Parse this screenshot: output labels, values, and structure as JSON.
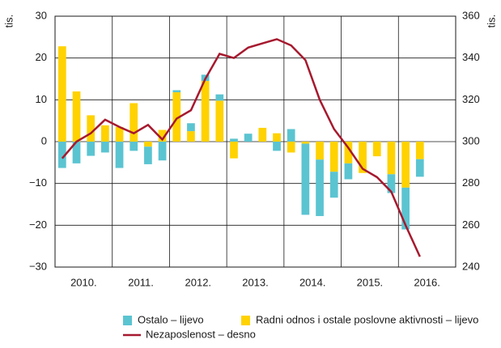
{
  "chart_data": {
    "type": "bar",
    "y_unit": "tis.",
    "y2_unit": "tis.",
    "xlim": [
      0,
      28
    ],
    "year_labels": [
      "2010.",
      "2011.",
      "2012.",
      "2013.",
      "2014.",
      "2015.",
      "2016."
    ],
    "categories": [
      null,
      null,
      null,
      null,
      null,
      null,
      null,
      null,
      null,
      null,
      null,
      null,
      null,
      null,
      null,
      null,
      null,
      null,
      null,
      null,
      null,
      null,
      null,
      null,
      null,
      null
    ],
    "ylim": [
      -30,
      30
    ],
    "yticks": [
      {
        "value": -30,
        "label": "−30"
      },
      {
        "value": -20,
        "label": "−20"
      },
      {
        "value": -10,
        "label": "−10"
      },
      0,
      10,
      20,
      30
    ],
    "y2lim": [
      240,
      360
    ],
    "y2ticks": [
      240,
      260,
      280,
      300,
      320,
      340,
      360
    ],
    "grid": true,
    "legend": "bottom",
    "series": [
      {
        "name": "Ostalo – lijevo",
        "color": "#5bc4d1",
        "values": [
          -6.3,
          -5.2,
          -3.4,
          -2.6,
          -6.3,
          -2.2,
          -4.2,
          -4.5,
          0.5,
          1.9,
          1.5,
          1.5,
          0.7,
          1.9,
          0,
          -2.2,
          3,
          -17,
          -13.5,
          -6.2,
          -3.8,
          0,
          0,
          -4.5,
          -10,
          -4.2
        ]
      },
      {
        "name": "Radni odnos i ostale poslovne aktivnosti – lijevo",
        "color": "#ffd200",
        "values": [
          22.8,
          12,
          6.3,
          3.9,
          3.5,
          9.2,
          -1.2,
          2.8,
          11.8,
          2.5,
          14.5,
          9.8,
          -4,
          0,
          3.3,
          2,
          -2.6,
          -0.5,
          -4.3,
          -7.2,
          -5.2,
          -7.5,
          -3.5,
          -7.8,
          -11,
          -4.2
        ]
      },
      {
        "name": "Nezaposlenost – desno",
        "color": "#a6192e",
        "type": "line",
        "axis": "y2",
        "values": [
          292,
          300,
          304,
          310.5,
          307,
          304,
          308,
          301,
          311,
          315,
          330,
          342,
          340,
          345,
          347,
          349,
          346,
          339,
          320,
          306,
          297,
          287,
          283,
          276,
          260,
          245
        ]
      }
    ]
  }
}
